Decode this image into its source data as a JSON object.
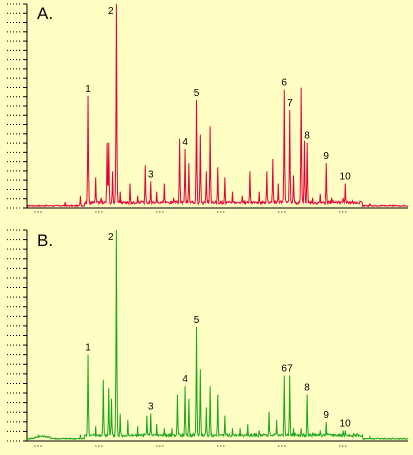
{
  "chart_data": [
    {
      "type": "line",
      "panel_label": "A.",
      "color": "#e8003a",
      "peaks": [
        {
          "label": "1",
          "x": 0.16,
          "y": 0.55
        },
        {
          "label": "2",
          "x": 0.235,
          "y": 1.0
        },
        {
          "label": "3",
          "x": 0.325,
          "y": 0.13
        },
        {
          "label": "4",
          "x": 0.415,
          "y": 0.29
        },
        {
          "label": "5",
          "x": 0.445,
          "y": 0.53
        },
        {
          "label": "6",
          "x": 0.675,
          "y": 0.58
        },
        {
          "label": "7",
          "x": 0.69,
          "y": 0.48
        },
        {
          "label": "8",
          "x": 0.735,
          "y": 0.32
        },
        {
          "label": "9",
          "x": 0.785,
          "y": 0.22
        },
        {
          "label": "10",
          "x": 0.835,
          "y": 0.12
        }
      ],
      "minor_peaks": [
        [
          0.1,
          0.03
        ],
        [
          0.14,
          0.06
        ],
        [
          0.18,
          0.15
        ],
        [
          0.195,
          0.05
        ],
        [
          0.21,
          0.32
        ],
        [
          0.215,
          0.32
        ],
        [
          0.225,
          0.18
        ],
        [
          0.245,
          0.08
        ],
        [
          0.27,
          0.12
        ],
        [
          0.29,
          0.06
        ],
        [
          0.31,
          0.21
        ],
        [
          0.34,
          0.08
        ],
        [
          0.36,
          0.12
        ],
        [
          0.385,
          0.05
        ],
        [
          0.4,
          0.34
        ],
        [
          0.425,
          0.22
        ],
        [
          0.455,
          0.36
        ],
        [
          0.47,
          0.18
        ],
        [
          0.48,
          0.4
        ],
        [
          0.5,
          0.2
        ],
        [
          0.52,
          0.15
        ],
        [
          0.54,
          0.08
        ],
        [
          0.565,
          0.06
        ],
        [
          0.585,
          0.18
        ],
        [
          0.61,
          0.08
        ],
        [
          0.63,
          0.18
        ],
        [
          0.645,
          0.24
        ],
        [
          0.66,
          0.12
        ],
        [
          0.7,
          0.16
        ],
        [
          0.72,
          0.59
        ],
        [
          0.728,
          0.33
        ],
        [
          0.75,
          0.05
        ],
        [
          0.77,
          0.07
        ],
        [
          0.8,
          0.05
        ],
        [
          0.83,
          0.05
        ],
        [
          0.86,
          0.03
        ],
        [
          0.9,
          0.02
        ]
      ]
    },
    {
      "type": "line",
      "panel_label": "B.",
      "color": "#1ca51c",
      "peaks": [
        {
          "label": "1",
          "x": 0.16,
          "y": 0.41
        },
        {
          "label": "2",
          "x": 0.235,
          "y": 1.0
        },
        {
          "label": "3",
          "x": 0.325,
          "y": 0.13
        },
        {
          "label": "4",
          "x": 0.415,
          "y": 0.26
        },
        {
          "label": "5",
          "x": 0.445,
          "y": 0.54
        },
        {
          "label": "6",
          "x": 0.675,
          "y": 0.31
        },
        {
          "label": "7",
          "x": 0.69,
          "y": 0.31
        },
        {
          "label": "8",
          "x": 0.735,
          "y": 0.22
        },
        {
          "label": "9",
          "x": 0.785,
          "y": 0.09
        },
        {
          "label": "10",
          "x": 0.835,
          "y": 0.05
        }
      ],
      "minor_peaks": [
        [
          0.03,
          0.03
        ],
        [
          0.06,
          0.02
        ],
        [
          0.14,
          0.03
        ],
        [
          0.18,
          0.07
        ],
        [
          0.2,
          0.29
        ],
        [
          0.215,
          0.25
        ],
        [
          0.222,
          0.2
        ],
        [
          0.245,
          0.13
        ],
        [
          0.265,
          0.1
        ],
        [
          0.29,
          0.07
        ],
        [
          0.315,
          0.12
        ],
        [
          0.34,
          0.08
        ],
        [
          0.36,
          0.06
        ],
        [
          0.38,
          0.06
        ],
        [
          0.395,
          0.22
        ],
        [
          0.425,
          0.2
        ],
        [
          0.455,
          0.34
        ],
        [
          0.47,
          0.16
        ],
        [
          0.48,
          0.26
        ],
        [
          0.5,
          0.22
        ],
        [
          0.52,
          0.12
        ],
        [
          0.54,
          0.06
        ],
        [
          0.56,
          0.06
        ],
        [
          0.58,
          0.08
        ],
        [
          0.61,
          0.05
        ],
        [
          0.635,
          0.14
        ],
        [
          0.655,
          0.1
        ],
        [
          0.7,
          0.06
        ],
        [
          0.72,
          0.06
        ],
        [
          0.75,
          0.04
        ],
        [
          0.77,
          0.05
        ],
        [
          0.8,
          0.03
        ],
        [
          0.83,
          0.05
        ],
        [
          0.86,
          0.03
        ],
        [
          0.9,
          0.02
        ]
      ]
    }
  ]
}
